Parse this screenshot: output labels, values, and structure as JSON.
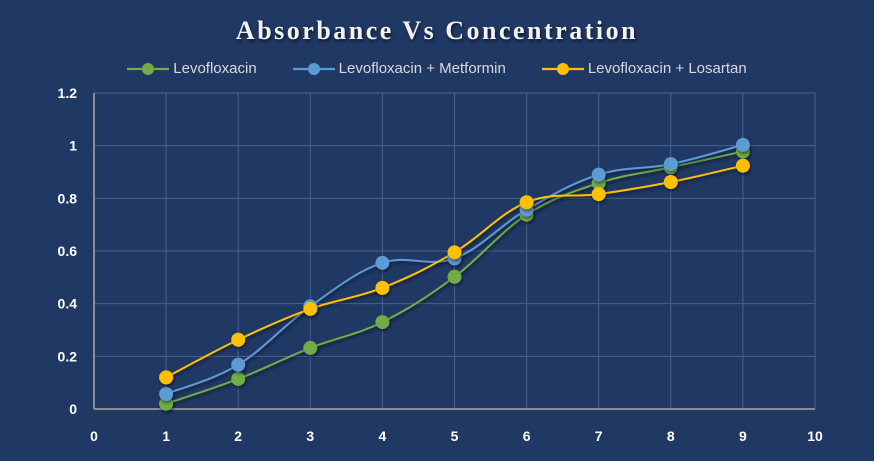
{
  "chart_data": {
    "type": "line",
    "title": "Absorbance Vs Concentration",
    "xlabel": "",
    "ylabel": "",
    "xlim": [
      0,
      10
    ],
    "ylim": [
      0,
      1.2
    ],
    "x_ticks": [
      "0",
      "1",
      "2",
      "3",
      "4",
      "5",
      "6",
      "7",
      "8",
      "9",
      "10"
    ],
    "y_ticks": [
      "0",
      "0.2",
      "0.4",
      "0.6",
      "0.8",
      "1",
      "1.2"
    ],
    "grid": true,
    "legend_position": "top",
    "smooth": true,
    "x": [
      1,
      2,
      3,
      4,
      5,
      6,
      7,
      8,
      9
    ],
    "series": [
      {
        "name": "Levofloxacin",
        "color": "#70AD47",
        "values": [
          0.02,
          0.114,
          0.232,
          0.33,
          0.502,
          0.738,
          0.858,
          0.918,
          0.978
        ]
      },
      {
        "name": "Levofloxacin + Metformin",
        "color": "#5B9BD5",
        "values": [
          0.057,
          0.168,
          0.39,
          0.555,
          0.572,
          0.757,
          0.89,
          0.93,
          1.003
        ]
      },
      {
        "name": "Levofloxacin + Losartan",
        "color": "#FFC000",
        "values": [
          0.12,
          0.263,
          0.38,
          0.46,
          0.595,
          0.785,
          0.816,
          0.862,
          0.924
        ]
      }
    ]
  }
}
